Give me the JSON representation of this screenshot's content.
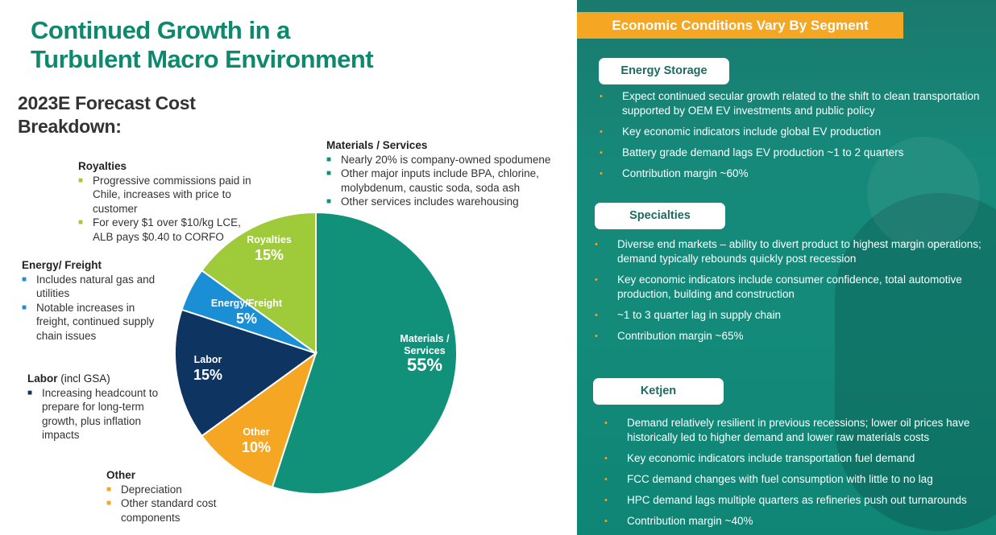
{
  "title_lines": [
    "Continued Growth in a",
    "Turbulent Macro Environment"
  ],
  "subtitle_lines": [
    "2023E Forecast Cost",
    "Breakdown:"
  ],
  "chart_data": {
    "type": "pie",
    "title": "2023E Forecast Cost Breakdown:",
    "slices": [
      {
        "label_lines": [
          "Materials /",
          "Services"
        ],
        "value": 55,
        "value_label": "55%",
        "color": "#12917a"
      },
      {
        "label_lines": [
          "Other"
        ],
        "value": 10,
        "value_label": "10%",
        "color": "#f5a623"
      },
      {
        "label_lines": [
          "Labor"
        ],
        "value": 15,
        "value_label": "15%",
        "color": "#0e3461"
      },
      {
        "label_lines": [
          "Energy/Freight"
        ],
        "value": 5,
        "value_label": "5%",
        "color": "#1a8fd6"
      },
      {
        "label_lines": [
          "Royalties"
        ],
        "value": 15,
        "value_label": "15%",
        "color": "#9fcb3b"
      }
    ]
  },
  "notes": {
    "materials": {
      "heading": "Materials / Services",
      "bullet_color": "#12917a",
      "items": [
        "Nearly 20% is company-owned spodumene",
        "Other major inputs include BPA, chlorine, molybdenum, caustic soda, soda ash",
        "Other services includes warehousing"
      ]
    },
    "royalties": {
      "heading": "Royalties",
      "bullet_color": "#9fcb3b",
      "items": [
        "Progressive commissions paid in Chile, increases with price to customer",
        "For every $1 over $10/kg LCE, ALB pays $0.40 to CORFO"
      ]
    },
    "energy": {
      "heading": "Energy/ Freight",
      "bullet_color": "#1a8fd6",
      "items": [
        "Includes natural gas and utilities",
        "Notable increases in freight, continued supply chain issues"
      ]
    },
    "labor": {
      "heading": "Labor",
      "heading_suffix": " (incl GSA)",
      "bullet_color": "#0e3461",
      "items": [
        "Increasing headcount to prepare for long-term growth, plus inflation impacts"
      ]
    },
    "other": {
      "heading": "Other",
      "bullet_color": "#f5a623",
      "items": [
        "Depreciation",
        "Other standard cost components"
      ]
    }
  },
  "panel": {
    "banner": "Economic Conditions Vary By Segment",
    "segments": [
      {
        "name": "Energy Storage",
        "items": [
          "Expect continued secular growth related to the shift to clean transportation supported by OEM EV investments and public policy",
          "Key economic indicators include global EV production",
          "Battery grade demand lags EV production ~1 to 2 quarters",
          "Contribution margin ~60%"
        ]
      },
      {
        "name": "Specialties",
        "items": [
          "Diverse end markets – ability to divert product to highest margin operations; demand typically rebounds quickly post recession",
          "Key economic indicators include consumer confidence, total automotive production, building and construction",
          "~1 to 3 quarter lag in supply chain",
          "Contribution margin ~65%"
        ]
      },
      {
        "name": "Ketjen",
        "items": [
          "Demand relatively resilient in previous recessions; lower oil prices have historically led to higher demand and lower raw materials costs",
          "Key economic indicators include transportation fuel demand",
          "FCC demand changes with fuel consumption with little to no lag",
          "HPC demand lags multiple quarters as refineries push out turnarounds",
          "Contribution margin ~40%"
        ]
      }
    ]
  }
}
